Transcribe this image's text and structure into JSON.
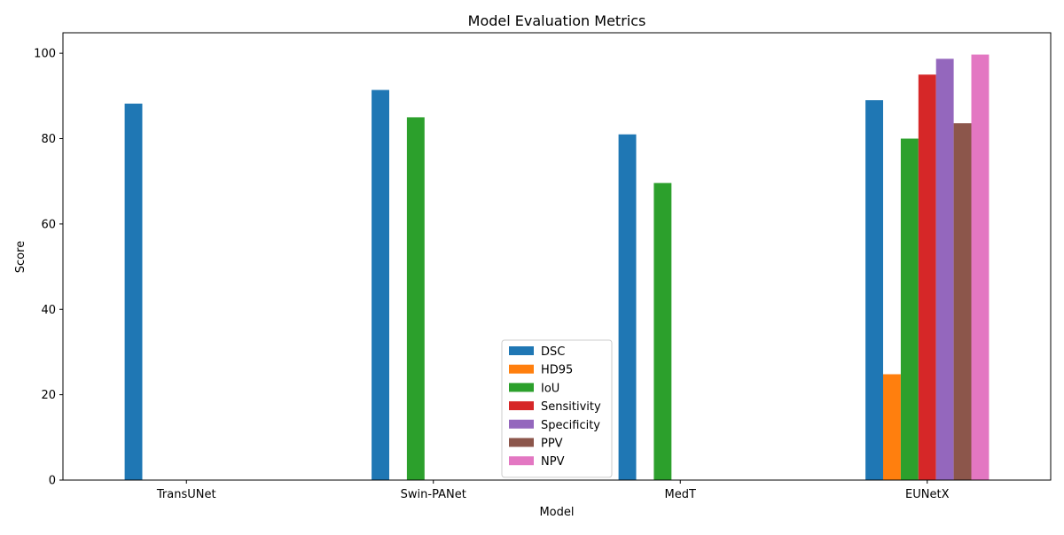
{
  "chart_data": {
    "type": "bar",
    "title": "Model Evaluation Metrics",
    "xlabel": "Model",
    "ylabel": "Score",
    "categories": [
      "TransUNet",
      "Swin-PANet",
      "MedT",
      "EUNetX"
    ],
    "ylim": [
      0,
      104.8
    ],
    "yticks": [
      0,
      20,
      40,
      60,
      80,
      100
    ],
    "grid": false,
    "legend_position": "lower center",
    "series": [
      {
        "name": "DSC",
        "color": "#1f77b4",
        "values": [
          88.2,
          91.4,
          81.0,
          89.0
        ]
      },
      {
        "name": "HD95",
        "color": "#ff7f0e",
        "values": [
          0,
          0,
          0,
          24.8
        ]
      },
      {
        "name": "IoU",
        "color": "#2ca02c",
        "values": [
          0,
          85.0,
          69.6,
          80.0
        ]
      },
      {
        "name": "Sensitivity",
        "color": "#d62728",
        "values": [
          0,
          0,
          0,
          95.0
        ]
      },
      {
        "name": "Specificity",
        "color": "#9467bd",
        "values": [
          0,
          0,
          0,
          98.7
        ]
      },
      {
        "name": "PPV",
        "color": "#8c564b",
        "values": [
          0,
          0,
          0,
          83.6
        ]
      },
      {
        "name": "NPV",
        "color": "#e377c2",
        "values": [
          0,
          0,
          0,
          99.7
        ]
      }
    ]
  }
}
